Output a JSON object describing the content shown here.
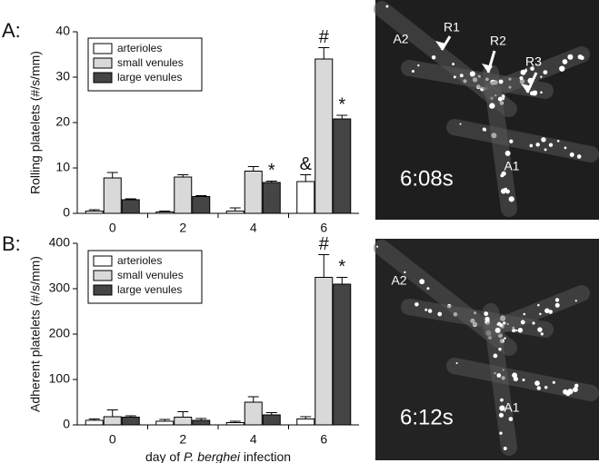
{
  "chart_data": [
    {
      "type": "bar",
      "panel_label": "A:",
      "ylabel": "Rolling platelets (#/s/mm)",
      "categories": [
        "0",
        "2",
        "4",
        "6"
      ],
      "ylim": [
        0,
        40
      ],
      "yticks": [
        0,
        10,
        20,
        30,
        40
      ],
      "series": [
        {
          "name": "arterioles",
          "color": "#ffffff",
          "values": [
            0.5,
            0.3,
            0.5,
            7
          ],
          "errors": [
            0.3,
            0.2,
            0.7,
            1.5
          ]
        },
        {
          "name": "small venules",
          "color": "#d9d9d9",
          "values": [
            7.8,
            8,
            9.3,
            34
          ],
          "errors": [
            1.2,
            0.5,
            1,
            2.5
          ]
        },
        {
          "name": "large venules",
          "color": "#454545",
          "values": [
            3,
            3.7,
            6.8,
            20.8
          ],
          "errors": [
            0.2,
            0.2,
            0.3,
            0.8
          ]
        }
      ],
      "annotations": [
        {
          "text": "&",
          "series": 0,
          "category": 3
        },
        {
          "text": "#",
          "series": 1,
          "category": 3
        },
        {
          "text": "*",
          "series": 2,
          "category": 2
        },
        {
          "text": "*",
          "series": 2,
          "category": 3
        }
      ]
    },
    {
      "type": "bar",
      "panel_label": "B:",
      "ylabel": "Adherent platelets (#/s/mm)",
      "xlabel": [
        "day of ",
        "P. berghei",
        " infection"
      ],
      "categories": [
        "0",
        "2",
        "4",
        "6"
      ],
      "ylim": [
        0,
        400
      ],
      "yticks": [
        0,
        100,
        200,
        300,
        400
      ],
      "series": [
        {
          "name": "arterioles",
          "color": "#ffffff",
          "values": [
            10,
            8,
            5,
            13
          ],
          "errors": [
            3,
            4,
            3,
            5
          ]
        },
        {
          "name": "small venules",
          "color": "#d9d9d9",
          "values": [
            18,
            17,
            50,
            325
          ],
          "errors": [
            15,
            12,
            12,
            50
          ]
        },
        {
          "name": "large venules",
          "color": "#454545",
          "values": [
            17,
            10,
            22,
            310
          ],
          "errors": [
            3,
            4,
            5,
            15
          ]
        }
      ],
      "annotations": [
        {
          "text": "#",
          "series": 1,
          "category": 3
        },
        {
          "text": "*",
          "series": 2,
          "category": 3
        }
      ]
    }
  ],
  "images": [
    {
      "labels": [
        "A2",
        "R1",
        "R2",
        "R3",
        "A1"
      ],
      "timestamp": "6:08s"
    },
    {
      "labels": [
        "A2",
        "A1"
      ],
      "timestamp": "6:12s"
    }
  ]
}
